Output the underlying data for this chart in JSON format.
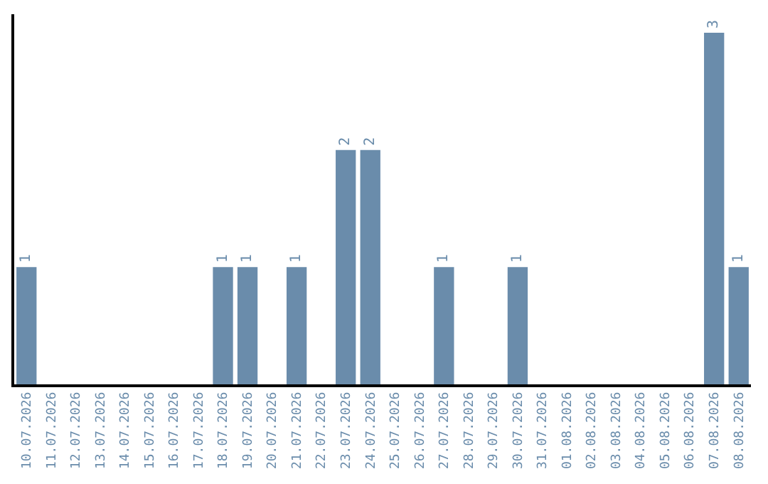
{
  "chart_data": {
    "type": "bar",
    "categories": [
      "10.07.2026",
      "11.07.2026",
      "12.07.2026",
      "13.07.2026",
      "14.07.2026",
      "15.07.2026",
      "16.07.2026",
      "17.07.2026",
      "18.07.2026",
      "19.07.2026",
      "20.07.2026",
      "21.07.2026",
      "22.07.2026",
      "23.07.2026",
      "24.07.2026",
      "25.07.2026",
      "26.07.2026",
      "27.07.2026",
      "28.07.2026",
      "29.07.2026",
      "30.07.2026",
      "31.07.2026",
      "01.08.2026",
      "02.08.2026",
      "03.08.2026",
      "04.08.2026",
      "05.08.2026",
      "06.08.2026",
      "07.08.2026",
      "08.08.2026"
    ],
    "values": [
      1,
      0,
      0,
      0,
      0,
      0,
      0,
      0,
      1,
      1,
      0,
      1,
      0,
      2,
      2,
      0,
      0,
      1,
      0,
      0,
      1,
      0,
      0,
      0,
      0,
      0,
      0,
      0,
      3,
      1
    ],
    "value_labels": [
      "1",
      null,
      null,
      null,
      null,
      null,
      null,
      null,
      "1",
      "1",
      null,
      "1",
      null,
      "2",
      "2",
      null,
      null,
      "1",
      null,
      null,
      "1",
      null,
      null,
      null,
      null,
      null,
      null,
      null,
      "3",
      "1"
    ],
    "color": "#6a8cab",
    "tick_labels": "x"
  }
}
